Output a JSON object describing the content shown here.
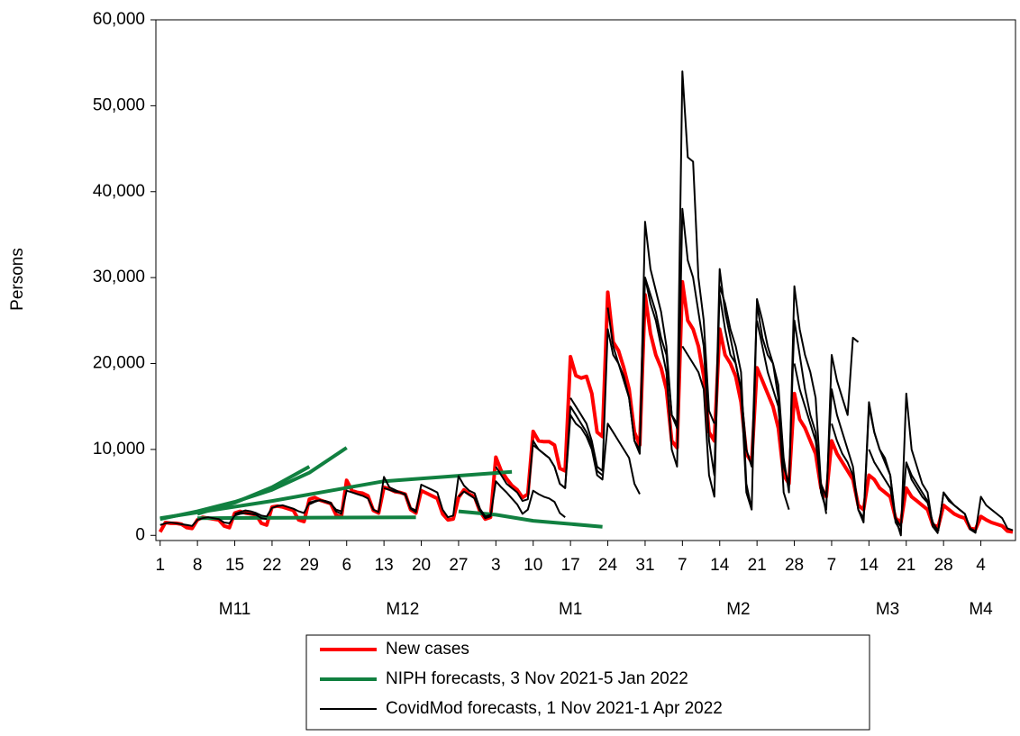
{
  "chart_data": {
    "type": "line",
    "y_label": "Persons",
    "ylim": [
      -600,
      60000
    ],
    "yticks": [
      0,
      {
        "value": 10000,
        "label": "10,000"
      },
      {
        "value": 20000,
        "label": "20,000"
      },
      {
        "value": 30000,
        "label": "30,000"
      },
      {
        "value": 40000,
        "label": "40,000"
      },
      {
        "value": 50000,
        "label": "50,000"
      },
      {
        "value": 60000,
        "label": "60,000"
      }
    ],
    "xlim": [
      -0.8,
      160.5
    ],
    "xticks": [
      {
        "value": 0,
        "label": "1"
      },
      {
        "value": 7,
        "label": "8"
      },
      {
        "value": 14,
        "label": "15"
      },
      {
        "value": 21,
        "label": "22"
      },
      {
        "value": 28,
        "label": "29"
      },
      {
        "value": 35,
        "label": "6"
      },
      {
        "value": 42,
        "label": "13"
      },
      {
        "value": 49,
        "label": "20"
      },
      {
        "value": 56,
        "label": "27"
      },
      {
        "value": 63,
        "label": "3"
      },
      {
        "value": 70,
        "label": "10"
      },
      {
        "value": 77,
        "label": "17"
      },
      {
        "value": 84,
        "label": "24"
      },
      {
        "value": 91,
        "label": "31"
      },
      {
        "value": 98,
        "label": "7"
      },
      {
        "value": 105,
        "label": "14"
      },
      {
        "value": 112,
        "label": "21"
      },
      {
        "value": 119,
        "label": "28"
      },
      {
        "value": 126,
        "label": "7"
      },
      {
        "value": 133,
        "label": "14"
      },
      {
        "value": 140,
        "label": "21"
      },
      {
        "value": 147,
        "label": "28"
      },
      {
        "value": 154,
        "label": "4"
      }
    ],
    "months": [
      "M11",
      "M12",
      "M1",
      "M2",
      "M3",
      "M4"
    ],
    "series": [
      {
        "name": "New cases",
        "color": "#ff0000",
        "width": 4,
        "values": [
          400,
          1500,
          1400,
          1400,
          1300,
          900,
          800,
          1800,
          2100,
          2000,
          1900,
          1800,
          1100,
          900,
          2600,
          2800,
          2600,
          2500,
          2400,
          1400,
          1200,
          3300,
          3400,
          3300,
          3100,
          2900,
          1800,
          1600,
          4200,
          4400,
          4100,
          3900,
          3700,
          2400,
          2100,
          6400,
          5200,
          5000,
          4900,
          4600,
          2900,
          2600,
          5600,
          5400,
          5100,
          5000,
          4800,
          3000,
          2600,
          5200,
          4900,
          4600,
          4300,
          2500,
          1800,
          1900,
          4400,
          5300,
          4800,
          4500,
          2800,
          1900,
          2100,
          9100,
          7500,
          6600,
          5800,
          5300,
          4400,
          4800,
          12100,
          11000,
          10900,
          10900,
          10500,
          7800,
          7500,
          20800,
          18600,
          18300,
          18500,
          16500,
          12000,
          11500,
          28300,
          22500,
          21500,
          19500,
          17000,
          12000,
          10500,
          28000,
          23500,
          21000,
          19500,
          17000,
          11000,
          10200,
          29500,
          25000,
          24000,
          22000,
          18500,
          12000,
          11000,
          24000,
          21000,
          20000,
          18500,
          15500,
          9500,
          8500,
          19500,
          18000,
          16500,
          15000,
          12500,
          7000,
          6000,
          16500,
          13500,
          12500,
          11000,
          9500,
          5500,
          4500,
          11000,
          9500,
          8500,
          7500,
          6500,
          3500,
          3000,
          7000,
          6500,
          5500,
          5000,
          4500,
          2000,
          1500,
          5500,
          4500,
          4000,
          3500,
          3000,
          1200,
          1000,
          3500,
          3000,
          2500,
          2200,
          2000,
          800,
          700,
          2200,
          1800,
          1500,
          1300,
          1100,
          500,
          400
        ]
      },
      {
        "name": "NIPH forecasts, 3 Nov 2021-5 Jan 2022",
        "color": "#118040",
        "width": 4,
        "lines": [
          {
            "x": [
              0,
              7,
              14,
              21,
              28,
              35
            ],
            "values": [
              1900,
              2800,
              3900,
              5300,
              7300,
              10200
            ]
          },
          {
            "x": [
              7,
              14,
              21,
              28
            ],
            "values": [
              2500,
              3800,
              5600,
              8000
            ]
          },
          {
            "x": [
              0,
              21,
              42,
              66
            ],
            "values": [
              2000,
              4000,
              6300,
              7400
            ]
          },
          {
            "x": [
              7,
              48
            ],
            "values": [
              2000,
              2100
            ]
          },
          {
            "x": [
              56,
              63,
              70,
              83
            ],
            "values": [
              2800,
              2400,
              1700,
              1000
            ]
          }
        ]
      },
      {
        "name": "CovidMod forecasts, 1 Nov 2021-1 Apr 2022",
        "color": "#000000",
        "width": 2,
        "lines": [
          {
            "start": 0,
            "values": [
              1200,
              1400,
              1500,
              1400,
              1300,
              1200,
              1100,
              1800,
              2000,
              2100,
              2000,
              1900,
              1500,
              1400,
              2300,
              2500,
              2600,
              2500,
              2400,
              2000,
              1900
            ]
          },
          {
            "start": 14,
            "values": [
              2500,
              2700,
              2900,
              2800,
              2600,
              2300,
              2200,
              3200,
              3400,
              3500,
              3300,
              3100,
              2800,
              2600,
              3800,
              4000,
              4100,
              3900,
              3700,
              3000,
              2800
            ]
          },
          {
            "start": 28,
            "values": [
              3600,
              3900,
              4100,
              4000,
              3800,
              2800,
              2500,
              5200,
              5000,
              4800,
              4600,
              4300,
              3000,
              2700,
              6800,
              5600,
              5300,
              5000,
              4800,
              3200,
              2900
            ]
          },
          {
            "start": 42,
            "values": [
              5500,
              5300,
              5100,
              5000,
              4700,
              3100,
              2700,
              5900,
              5600,
              5300,
              5000,
              3000,
              2100,
              2300,
              6900,
              5800,
              5200,
              4900,
              3100,
              2200,
              2400
            ]
          },
          {
            "start": 56,
            "values": [
              4500,
              5100,
              4700,
              4300,
              2900,
              2000,
              2200,
              6300,
              5600,
              5000,
              4300,
              3600,
              2500,
              3000,
              5200,
              4800,
              4500,
              4300,
              3900,
              2600,
              2100
            ]
          },
          {
            "start": 63,
            "values": [
              8000,
              7000,
              6000,
              5500,
              5000,
              4000,
              4200,
              11000,
              10000,
              9500,
              9000,
              8000,
              6000,
              5500,
              15000,
              14000,
              13000,
              12000,
              10500,
              7500,
              7000
            ]
          },
          {
            "start": 70,
            "values": [
              10500,
              10000,
              9500,
              9000,
              8000,
              6000,
              5500,
              14000,
              13000,
              12500,
              11500,
              10000,
              7000,
              6500,
              13000,
              12000,
              11000,
              10000,
              9000,
              6000,
              4800
            ]
          },
          {
            "start": 77,
            "values": [
              16000,
              15000,
              14000,
              13000,
              11000,
              8000,
              7500,
              24000,
              21000,
              20000,
              18500,
              16000,
              11000,
              10000,
              30000,
              28000,
              26000,
              23000,
              21000,
              14000,
              13000
            ]
          },
          {
            "start": 84,
            "values": [
              26500,
              22000,
              20000,
              18000,
              16000,
              11000,
              9500,
              36500,
              31000,
              28500,
              26000,
              22000,
              14000,
              12500,
              54000,
              44000,
              43500,
              30000,
              25000,
              14500,
              13000
            ]
          },
          {
            "start": 91,
            "values": [
              30000,
              27000,
              25000,
              22000,
              19000,
              10000,
              8000,
              38000,
              32000,
              30000,
              26000,
              22000,
              11000,
              7000,
              31000,
              26000,
              23000,
              20000,
              17000,
              5000,
              3000
            ]
          },
          {
            "start": 98,
            "values": [
              22000,
              21000,
              20000,
              19000,
              17000,
              7000,
              4500,
              29000,
              27000,
              24000,
              22000,
              19000,
              6000,
              3000,
              27500,
              25000,
              22000,
              20000,
              16000,
              5000,
              3000
            ]
          },
          {
            "start": 105,
            "values": [
              28000,
              24000,
              21000,
              20000,
              17000,
              10000,
              8000,
              27000,
              23000,
              21000,
              20000,
              17500,
              9000,
              5000,
              29000,
              24000,
              21000,
              19000,
              16000,
              6000,
              2500
            ]
          },
          {
            "start": 112,
            "values": [
              25000,
              22000,
              19000,
              17000,
              15000,
              8000,
              6000,
              25000,
              21000,
              17000,
              14000,
              12000,
              5000,
              3000,
              21000,
              18000,
              16000,
              14000,
              23000,
              22500
            ]
          },
          {
            "start": 119,
            "values": [
              20000,
              17000,
              15000,
              13000,
              11000,
              6000,
              4500,
              17000,
              14000,
              12000,
              10000,
              8000,
              3000,
              2000,
              15500,
              12000,
              10000,
              8500,
              7000,
              1500,
              500
            ]
          },
          {
            "start": 126,
            "values": [
              13000,
              11000,
              9500,
              8500,
              7000,
              3000,
              1500,
              15000,
              12000,
              10000,
              9000,
              7000,
              2000,
              0,
              16500,
              10000,
              8000,
              6000,
              5000,
              1000,
              200
            ]
          },
          {
            "start": 133,
            "values": [
              10000,
              8500,
              7500,
              6500,
              5500,
              2000,
              1000,
              8500,
              7000,
              6000,
              5000,
              4000,
              1000,
              500,
              5000,
              4000,
              3500,
              3000,
              2500,
              800,
              500
            ]
          },
          {
            "start": 140,
            "values": [
              8500,
              6500,
              5500,
              4500,
              3800,
              1500,
              500,
              5000,
              4200,
              3500,
              3000,
              2500,
              700,
              300,
              4500,
              3500,
              3000,
              2500,
              2000,
              800,
              600
            ]
          }
        ]
      }
    ]
  }
}
